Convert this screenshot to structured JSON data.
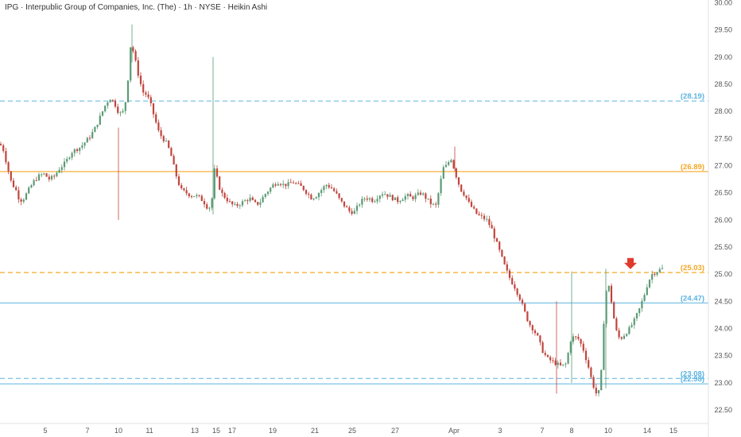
{
  "header": {
    "symbol_line": "IPG · Interpublic Group of Companies, Inc. (The) · 1h · NYSE · Heikin Ashi"
  },
  "colors": {
    "up": "#5b9a74",
    "down": "#c0453d",
    "orange": "#f5a623",
    "blue": "#5bb3e0",
    "marker": "#e03a2f"
  },
  "chart_data": {
    "type": "candlestick",
    "title": "IPG · Interpublic Group of Companies, Inc. (The) · 1h · NYSE · Heikin Ashi",
    "ylim": [
      22.25,
      30.05
    ],
    "y_ticks": [
      "30.00",
      "29.50",
      "29.00",
      "28.50",
      "28.00",
      "27.50",
      "27.00",
      "26.50",
      "26.00",
      "25.50",
      "25.00",
      "24.50",
      "24.00",
      "23.50",
      "23.00",
      "22.50"
    ],
    "x_ticks": [
      "5",
      "7",
      "10",
      "11",
      "13",
      "15",
      "17",
      "19",
      "21",
      "25",
      "27",
      "Apr",
      "3",
      "7",
      "8",
      "10",
      "14",
      "15"
    ],
    "levels": [
      {
        "label": "(28.19)",
        "value": 28.19,
        "color": "blue",
        "style": "dashed"
      },
      {
        "label": "(26.89)",
        "value": 26.89,
        "color": "orange",
        "style": "solid"
      },
      {
        "label": "(25.03)",
        "value": 25.03,
        "color": "orange",
        "style": "dashed"
      },
      {
        "label": "(24.47)",
        "value": 24.47,
        "color": "blue",
        "style": "solid"
      },
      {
        "label": "(23.08)",
        "value": 23.08,
        "color": "blue",
        "style": "dashed"
      },
      {
        "label": "(22.98)",
        "value": 22.98,
        "color": "blue",
        "style": "solid"
      }
    ],
    "marker": {
      "type": "down-arrow",
      "x_tick": "10",
      "price": 25.18
    },
    "series_path": [
      [
        0,
        27.4
      ],
      [
        4,
        27.3
      ],
      [
        9,
        27.0
      ],
      [
        14,
        26.7
      ],
      [
        20,
        26.55
      ],
      [
        25,
        26.35
      ],
      [
        30,
        26.4
      ],
      [
        36,
        26.55
      ],
      [
        42,
        26.7
      ],
      [
        48,
        26.8
      ],
      [
        55,
        26.85
      ],
      [
        62,
        26.75
      ],
      [
        68,
        26.8
      ],
      [
        75,
        26.95
      ],
      [
        82,
        27.05
      ],
      [
        90,
        27.25
      ],
      [
        96,
        27.3
      ],
      [
        102,
        27.35
      ],
      [
        108,
        27.45
      ],
      [
        114,
        27.55
      ],
      [
        120,
        27.7
      ],
      [
        126,
        27.9
      ],
      [
        132,
        28.1
      ],
      [
        138,
        28.25
      ],
      [
        144,
        28.15
      ],
      [
        150,
        27.95
      ],
      [
        156,
        28.0
      ],
      [
        160,
        28.4
      ],
      [
        164,
        29.2
      ],
      [
        168,
        29.1
      ],
      [
        172,
        28.8
      ],
      [
        176,
        28.55
      ],
      [
        180,
        28.35
      ],
      [
        185,
        28.3
      ],
      [
        190,
        28.1
      ],
      [
        196,
        27.8
      ],
      [
        200,
        27.6
      ],
      [
        205,
        27.5
      ],
      [
        210,
        27.4
      ],
      [
        215,
        27.2
      ],
      [
        220,
        26.9
      ],
      [
        224,
        26.7
      ],
      [
        228,
        26.55
      ],
      [
        234,
        26.5
      ],
      [
        240,
        26.45
      ],
      [
        246,
        26.45
      ],
      [
        252,
        26.4
      ],
      [
        258,
        26.3
      ],
      [
        262,
        26.2
      ],
      [
        266,
        26.3
      ],
      [
        270,
        26.95
      ],
      [
        274,
        26.7
      ],
      [
        278,
        26.5
      ],
      [
        284,
        26.4
      ],
      [
        290,
        26.3
      ],
      [
        296,
        26.25
      ],
      [
        302,
        26.3
      ],
      [
        308,
        26.35
      ],
      [
        314,
        26.4
      ],
      [
        320,
        26.3
      ],
      [
        326,
        26.3
      ],
      [
        332,
        26.45
      ],
      [
        338,
        26.55
      ],
      [
        344,
        26.65
      ],
      [
        350,
        26.7
      ],
      [
        356,
        26.65
      ],
      [
        362,
        26.65
      ],
      [
        368,
        26.7
      ],
      [
        374,
        26.65
      ],
      [
        380,
        26.6
      ],
      [
        386,
        26.5
      ],
      [
        392,
        26.4
      ],
      [
        398,
        26.45
      ],
      [
        404,
        26.55
      ],
      [
        410,
        26.65
      ],
      [
        416,
        26.6
      ],
      [
        422,
        26.5
      ],
      [
        428,
        26.35
      ],
      [
        434,
        26.25
      ],
      [
        440,
        26.15
      ],
      [
        446,
        26.15
      ],
      [
        452,
        26.3
      ],
      [
        458,
        26.4
      ],
      [
        464,
        26.4
      ],
      [
        470,
        26.35
      ],
      [
        476,
        26.45
      ],
      [
        482,
        26.5
      ],
      [
        488,
        26.45
      ],
      [
        494,
        26.4
      ],
      [
        500,
        26.35
      ],
      [
        506,
        26.4
      ],
      [
        512,
        26.45
      ],
      [
        518,
        26.4
      ],
      [
        524,
        26.45
      ],
      [
        530,
        26.5
      ],
      [
        536,
        26.4
      ],
      [
        542,
        26.3
      ],
      [
        548,
        26.25
      ],
      [
        553,
        26.6
      ],
      [
        557,
        26.95
      ],
      [
        562,
        27.0
      ],
      [
        567,
        27.15
      ],
      [
        572,
        26.9
      ],
      [
        576,
        26.7
      ],
      [
        580,
        26.55
      ],
      [
        585,
        26.45
      ],
      [
        590,
        26.3
      ],
      [
        595,
        26.2
      ],
      [
        600,
        26.1
      ],
      [
        606,
        26.05
      ],
      [
        612,
        26.0
      ],
      [
        618,
        25.85
      ],
      [
        624,
        25.6
      ],
      [
        630,
        25.35
      ],
      [
        636,
        25.1
      ],
      [
        642,
        24.9
      ],
      [
        648,
        24.75
      ],
      [
        654,
        24.55
      ],
      [
        660,
        24.3
      ],
      [
        665,
        24.1
      ],
      [
        670,
        24.0
      ],
      [
        676,
        23.85
      ],
      [
        682,
        23.6
      ],
      [
        688,
        23.45
      ],
      [
        694,
        23.4
      ],
      [
        700,
        23.35
      ],
      [
        706,
        23.3
      ],
      [
        712,
        23.35
      ],
      [
        718,
        23.8
      ],
      [
        722,
        23.85
      ],
      [
        728,
        23.8
      ],
      [
        734,
        23.6
      ],
      [
        740,
        23.3
      ],
      [
        745,
        23.0
      ],
      [
        750,
        22.8
      ],
      [
        755,
        22.85
      ],
      [
        760,
        24.3
      ],
      [
        764,
        24.9
      ],
      [
        768,
        24.6
      ],
      [
        772,
        24.2
      ],
      [
        776,
        23.9
      ],
      [
        780,
        23.8
      ],
      [
        786,
        23.9
      ],
      [
        792,
        24.0
      ],
      [
        798,
        24.15
      ],
      [
        804,
        24.35
      ],
      [
        810,
        24.6
      ],
      [
        815,
        24.85
      ],
      [
        820,
        25.0
      ],
      [
        826,
        25.05
      ],
      [
        832,
        25.1
      ]
    ]
  }
}
